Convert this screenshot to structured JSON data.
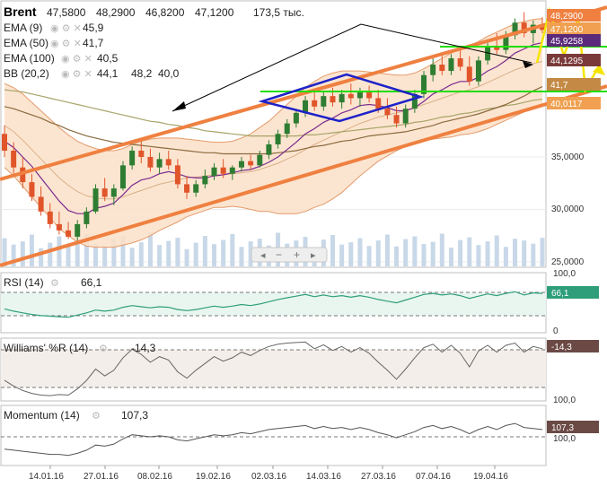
{
  "header": {
    "symbol": "Brent",
    "open": "47,5800",
    "high": "48,2900",
    "low": "46,8200",
    "close": "47,1200",
    "volume": "173,5 тыс."
  },
  "indicators": [
    {
      "label": "EMA (9)",
      "value": "45,9",
      "color": "#7b2a8e"
    },
    {
      "label": "EMA (50)",
      "value": "41,7",
      "color": "#8b6a3e"
    },
    {
      "label": "EMA (100)",
      "value": "40,5",
      "color": "#a8a46a"
    },
    {
      "label": "BB (20,2)",
      "value": "44,1",
      "value2": "48,2",
      "value3": "40,0",
      "color": "#c0392b"
    }
  ],
  "price_axis": {
    "ticks": [
      "35,0000",
      "30,0000",
      "25,0000"
    ],
    "tags": [
      "48,2900",
      "47,1200",
      "45,9258",
      "44,1295",
      "41,7",
      "40,0117"
    ]
  },
  "nav": {
    "prev": "◂",
    "minus": "−",
    "plus": "+",
    "next": "▸"
  },
  "x_axis": {
    "labels": [
      "14.01.16",
      "27.01.16",
      "08.02.16",
      "19.02.16",
      "02.03.16",
      "14.03.16",
      "27.03.16",
      "07.04.16",
      "19.04.16"
    ]
  },
  "rsi": {
    "label": "RSI (14)",
    "value": "66,1",
    "ticks": [
      "100,0",
      "0"
    ]
  },
  "williams": {
    "label": "Williams' %R (14)",
    "value": "-14,3",
    "ticks": [
      "100,0"
    ]
  },
  "momentum": {
    "label": "Momentum (14)",
    "value": "107,3",
    "ticks": [
      "100,0"
    ]
  },
  "colors": {
    "channel": "#ef8040",
    "support": "#22dd00",
    "diamond": "#1e22c8",
    "bb_fill": "#fbe0c8",
    "up": "#2e7d32",
    "down": "#e0552a",
    "volume": "#c8d8e8",
    "rsi": "#2e9e7a",
    "williams": "#666666",
    "momentum": "#555555"
  },
  "chart_data": {
    "type": "candlestick",
    "series": [
      {
        "name": "Brent",
        "values": [
          [
            37.2,
            38.0,
            35.0,
            35.6
          ],
          [
            35.6,
            36.4,
            33.4,
            34.0
          ],
          [
            34.0,
            35.0,
            32.0,
            32.6
          ],
          [
            32.6,
            33.4,
            30.8,
            31.2
          ],
          [
            31.2,
            32.2,
            29.4,
            29.8
          ],
          [
            29.8,
            30.6,
            28.2,
            28.6
          ],
          [
            28.6,
            29.8,
            27.6,
            28.0
          ],
          [
            28.0,
            28.8,
            27.2,
            27.4
          ],
          [
            27.4,
            29.0,
            26.8,
            28.6
          ],
          [
            28.6,
            30.2,
            28.2,
            29.8
          ],
          [
            29.8,
            32.4,
            29.6,
            32.0
          ],
          [
            32.0,
            33.0,
            30.8,
            31.2
          ],
          [
            31.2,
            32.4,
            30.4,
            32.0
          ],
          [
            32.0,
            34.6,
            31.8,
            34.2
          ],
          [
            34.2,
            36.0,
            33.8,
            35.6
          ],
          [
            35.6,
            36.6,
            34.4,
            35.0
          ],
          [
            35.0,
            35.8,
            33.6,
            34.0
          ],
          [
            34.0,
            35.4,
            33.4,
            34.8
          ],
          [
            34.8,
            35.6,
            33.8,
            34.2
          ],
          [
            34.2,
            34.8,
            32.0,
            32.4
          ],
          [
            32.4,
            33.2,
            31.0,
            31.6
          ],
          [
            31.6,
            32.8,
            31.2,
            32.4
          ],
          [
            32.4,
            33.8,
            32.0,
            33.2
          ],
          [
            33.2,
            34.4,
            32.8,
            34.0
          ],
          [
            34.0,
            34.8,
            33.0,
            33.4
          ],
          [
            33.4,
            34.2,
            32.8,
            34.0
          ],
          [
            34.0,
            35.0,
            33.6,
            34.6
          ],
          [
            34.6,
            35.2,
            33.8,
            34.2
          ],
          [
            34.2,
            35.6,
            34.0,
            35.2
          ],
          [
            35.2,
            36.6,
            34.8,
            36.2
          ],
          [
            36.2,
            37.6,
            35.8,
            37.2
          ],
          [
            37.2,
            38.6,
            36.8,
            38.2
          ],
          [
            38.2,
            39.6,
            37.8,
            39.2
          ],
          [
            39.2,
            40.8,
            38.8,
            40.4
          ],
          [
            40.4,
            41.2,
            39.4,
            39.8
          ],
          [
            39.8,
            41.2,
            39.4,
            40.8
          ],
          [
            40.8,
            41.6,
            39.8,
            40.2
          ],
          [
            40.2,
            41.4,
            39.6,
            41.0
          ],
          [
            41.0,
            42.0,
            40.0,
            40.6
          ],
          [
            40.6,
            41.6,
            39.8,
            41.2
          ],
          [
            41.2,
            41.8,
            40.2,
            40.6
          ],
          [
            40.6,
            41.4,
            39.2,
            39.6
          ],
          [
            39.6,
            40.6,
            38.6,
            39.0
          ],
          [
            39.0,
            39.8,
            37.8,
            38.2
          ],
          [
            38.2,
            40.0,
            37.8,
            39.6
          ],
          [
            39.6,
            41.4,
            39.2,
            41.0
          ],
          [
            41.0,
            43.2,
            40.6,
            42.8
          ],
          [
            42.8,
            44.4,
            42.2,
            43.8
          ],
          [
            43.8,
            45.0,
            42.8,
            43.2
          ],
          [
            43.2,
            44.8,
            42.8,
            44.4
          ],
          [
            44.4,
            45.4,
            43.2,
            43.6
          ],
          [
            43.6,
            44.6,
            41.8,
            42.2
          ],
          [
            42.2,
            44.6,
            41.8,
            44.2
          ],
          [
            44.2,
            46.0,
            43.8,
            45.6
          ],
          [
            45.6,
            46.8,
            44.8,
            45.2
          ],
          [
            45.2,
            47.0,
            44.8,
            46.6
          ],
          [
            46.6,
            48.2,
            46.2,
            47.8
          ],
          [
            47.8,
            48.8,
            46.4,
            46.8
          ],
          [
            46.8,
            48.0,
            45.8,
            47.6
          ],
          [
            47.6,
            48.3,
            46.8,
            47.1
          ]
        ]
      }
    ],
    "ylim": [
      24.5,
      49.5
    ],
    "ylabel": "",
    "xlabel": "",
    "x_labels": [
      "14.01.16",
      "27.01.16",
      "08.02.16",
      "19.02.16",
      "02.03.16",
      "14.03.16",
      "27.03.16",
      "07.04.16",
      "19.04.16"
    ],
    "y_ticks": [
      25,
      30,
      35
    ],
    "volume": [
      62,
      48,
      55,
      70,
      40,
      52,
      66,
      45,
      58,
      72,
      50,
      44,
      60,
      68,
      41,
      53,
      75,
      47,
      56,
      63,
      38,
      52,
      67,
      49,
      58,
      71,
      43,
      55,
      61,
      46,
      74,
      50,
      57,
      65,
      42,
      59,
      69,
      48,
      53,
      62,
      45,
      57,
      70,
      44,
      60,
      66,
      49,
      54,
      72,
      41,
      58,
      64,
      47,
      55,
      68,
      43,
      61,
      57,
      50,
      63
    ],
    "rsi": [
      38,
      34,
      31,
      28,
      26,
      25,
      24,
      23,
      27,
      31,
      36,
      34,
      36,
      41,
      44,
      42,
      40,
      42,
      41,
      37,
      35,
      37,
      40,
      43,
      41,
      43,
      46,
      44,
      47,
      51,
      55,
      58,
      61,
      64,
      60,
      63,
      60,
      62,
      59,
      62,
      59,
      55,
      52,
      49,
      54,
      59,
      64,
      66,
      63,
      65,
      62,
      57,
      61,
      65,
      62,
      66,
      69,
      63,
      67,
      66
    ],
    "williams": [
      -70,
      -80,
      -88,
      -93,
      -96,
      -97,
      -95,
      -96,
      -85,
      -70,
      -50,
      -62,
      -52,
      -30,
      -15,
      -24,
      -38,
      -28,
      -34,
      -55,
      -66,
      -52,
      -40,
      -28,
      -36,
      -30,
      -20,
      -26,
      -17,
      -10,
      -6,
      -4,
      -3,
      -2,
      -14,
      -7,
      -17,
      -10,
      -20,
      -12,
      -22,
      -38,
      -52,
      -68,
      -50,
      -30,
      -12,
      -6,
      -20,
      -8,
      -22,
      -46,
      -18,
      -8,
      -20,
      -8,
      -4,
      -20,
      -10,
      -14
    ],
    "momentum": [
      88,
      87,
      86,
      85,
      84,
      83,
      83,
      82,
      84,
      87,
      92,
      91,
      93,
      98,
      102,
      101,
      100,
      101,
      100,
      97,
      96,
      98,
      100,
      102,
      101,
      102,
      104,
      103,
      105,
      107,
      108,
      109,
      110,
      111,
      108,
      110,
      108,
      109,
      107,
      109,
      107,
      104,
      102,
      99,
      102,
      105,
      109,
      111,
      108,
      110,
      107,
      103,
      107,
      110,
      107,
      111,
      113,
      109,
      108,
      107
    ],
    "ema9": [
      36.5,
      35.9,
      35.0,
      34.1,
      33.0,
      31.9,
      30.8,
      29.9,
      29.6,
      29.6,
      30.1,
      30.3,
      30.6,
      31.4,
      32.3,
      32.8,
      33.0,
      33.4,
      33.6,
      33.4,
      33.1,
      33.0,
      33.0,
      33.2,
      33.3,
      33.5,
      33.7,
      33.8,
      34.1,
      34.5,
      35.0,
      35.7,
      36.4,
      37.2,
      37.7,
      38.3,
      38.7,
      39.2,
      39.5,
      39.9,
      40.0,
      39.9,
      39.7,
      39.4,
      39.4,
      39.7,
      40.3,
      41.0,
      41.4,
      41.9,
      42.2,
      42.2,
      42.6,
      43.2,
      43.6,
      44.2,
      44.9,
      45.3,
      45.7,
      45.9
    ],
    "ema50": [
      39.8,
      39.6,
      39.3,
      39.0,
      38.7,
      38.3,
      38.0,
      37.6,
      37.3,
      37.0,
      36.8,
      36.6,
      36.4,
      36.3,
      36.2,
      36.1,
      36.0,
      35.9,
      35.8,
      35.7,
      35.6,
      35.5,
      35.4,
      35.4,
      35.3,
      35.3,
      35.3,
      35.3,
      35.3,
      35.3,
      35.4,
      35.5,
      35.6,
      35.8,
      36.0,
      36.1,
      36.3,
      36.5,
      36.6,
      36.8,
      37.0,
      37.1,
      37.2,
      37.3,
      37.4,
      37.6,
      37.8,
      38.0,
      38.3,
      38.5,
      38.7,
      38.9,
      39.1,
      39.4,
      39.7,
      40.0,
      40.4,
      40.8,
      41.3,
      41.7
    ],
    "ema100": [
      41.4,
      41.3,
      41.2,
      41.0,
      40.8,
      40.6,
      40.4,
      40.2,
      40.0,
      39.8,
      39.6,
      39.4,
      39.2,
      39.0,
      38.8,
      38.6,
      38.4,
      38.3,
      38.1,
      38.0,
      37.8,
      37.7,
      37.5,
      37.4,
      37.3,
      37.2,
      37.1,
      37.0,
      37.0,
      37.0,
      37.0,
      37.0,
      37.0,
      37.1,
      37.1,
      37.2,
      37.3,
      37.4,
      37.5,
      37.6,
      37.7,
      37.8,
      37.9,
      38.0,
      38.1,
      38.3,
      38.4,
      38.6,
      38.8,
      38.9,
      39.1,
      39.2,
      39.4,
      39.6,
      39.7,
      39.9,
      40.0,
      40.2,
      40.4,
      40.5
    ],
    "bb_mid": [
      38.0,
      37.4,
      36.6,
      35.7,
      34.8,
      33.9,
      33.0,
      32.3,
      31.7,
      31.3,
      31.1,
      31.0,
      31.0,
      31.2,
      31.5,
      31.8,
      32.1,
      32.4,
      32.6,
      32.8,
      33.0,
      33.1,
      33.2,
      33.3,
      33.3,
      33.4,
      33.5,
      33.6,
      33.8,
      34.1,
      34.4,
      34.8,
      35.2,
      35.7,
      36.2,
      36.6,
      37.0,
      37.4,
      37.8,
      38.2,
      38.5,
      38.8,
      39.0,
      39.2,
      39.4,
      39.7,
      40.0,
      40.3,
      40.6,
      40.9,
      41.2,
      41.4,
      41.7,
      42.1,
      42.5,
      42.9,
      43.3,
      43.6,
      43.9,
      44.1
    ],
    "bb_upper": [
      42.0,
      41.6,
      41.0,
      40.2,
      39.4,
      38.6,
      37.8,
      37.1,
      36.5,
      36.1,
      35.8,
      35.6,
      35.6,
      35.8,
      36.2,
      36.5,
      36.7,
      36.8,
      36.8,
      36.8,
      36.7,
      36.6,
      36.5,
      36.4,
      36.4,
      36.5,
      36.8,
      37.2,
      37.8,
      38.4,
      39.2,
      40.0,
      40.8,
      41.6,
      42.2,
      42.7,
      43.0,
      43.2,
      43.2,
      43.2,
      43.1,
      43.0,
      42.9,
      42.8,
      42.8,
      43.0,
      43.4,
      43.9,
      44.4,
      44.9,
      45.3,
      45.6,
      46.0,
      46.5,
      46.9,
      47.3,
      47.7,
      47.9,
      48.1,
      48.2
    ],
    "bb_lower": [
      34.0,
      33.2,
      32.2,
      31.2,
      30.2,
      29.2,
      28.2,
      27.5,
      26.9,
      26.5,
      26.4,
      26.4,
      26.4,
      26.6,
      26.8,
      27.1,
      27.5,
      28.0,
      28.4,
      28.8,
      29.3,
      29.6,
      29.9,
      30.2,
      30.2,
      30.3,
      30.2,
      30.0,
      29.8,
      29.8,
      29.6,
      29.6,
      29.6,
      29.8,
      30.2,
      30.5,
      31.0,
      31.6,
      32.4,
      33.2,
      33.9,
      34.6,
      35.1,
      35.6,
      36.0,
      36.4,
      36.6,
      36.7,
      36.8,
      36.9,
      37.1,
      37.2,
      37.4,
      37.7,
      38.1,
      38.5,
      38.9,
      39.3,
      39.7,
      40.0
    ]
  }
}
